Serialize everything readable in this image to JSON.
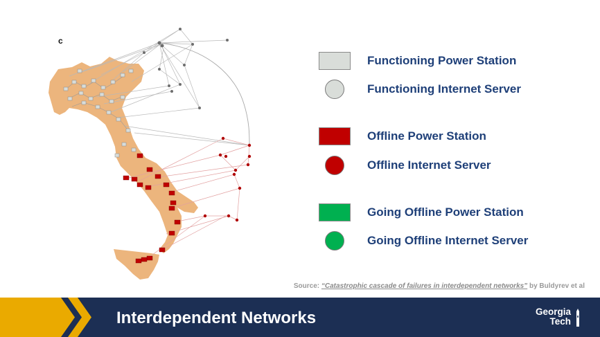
{
  "panel_label": "c",
  "legend": [
    {
      "label": "Functioning Power Station",
      "shape": "square",
      "fill": "#d9ddd9"
    },
    {
      "label": "Functioning Internet Server",
      "shape": "circle",
      "fill": "#d9ddd9"
    },
    {
      "label": "Offline Power Station",
      "shape": "square",
      "fill": "#c00000"
    },
    {
      "label": "Offline Internet Server",
      "shape": "circle",
      "fill": "#c00000"
    },
    {
      "label": "Going Offline Power Station",
      "shape": "square",
      "fill": "#00b050"
    },
    {
      "label": "Going Offline Internet Server",
      "shape": "circle",
      "fill": "#00b050"
    }
  ],
  "source": {
    "prefix": "Source: ",
    "title": "“Catastrophic cascade of failures in interdependent networks”",
    "suffix": " by Buldyrev et al"
  },
  "footer": {
    "title": "Interdependent Networks",
    "logo_line1": "Georgia",
    "logo_line2": "Tech"
  },
  "colors": {
    "map_land": "#ecb57d",
    "legend_text": "#1e3f78",
    "footer_bg": "#1c2f54",
    "chevron_gold": "#eaaa00",
    "offline_red": "#c00000",
    "functioning_gray": "#d9ddd9"
  }
}
